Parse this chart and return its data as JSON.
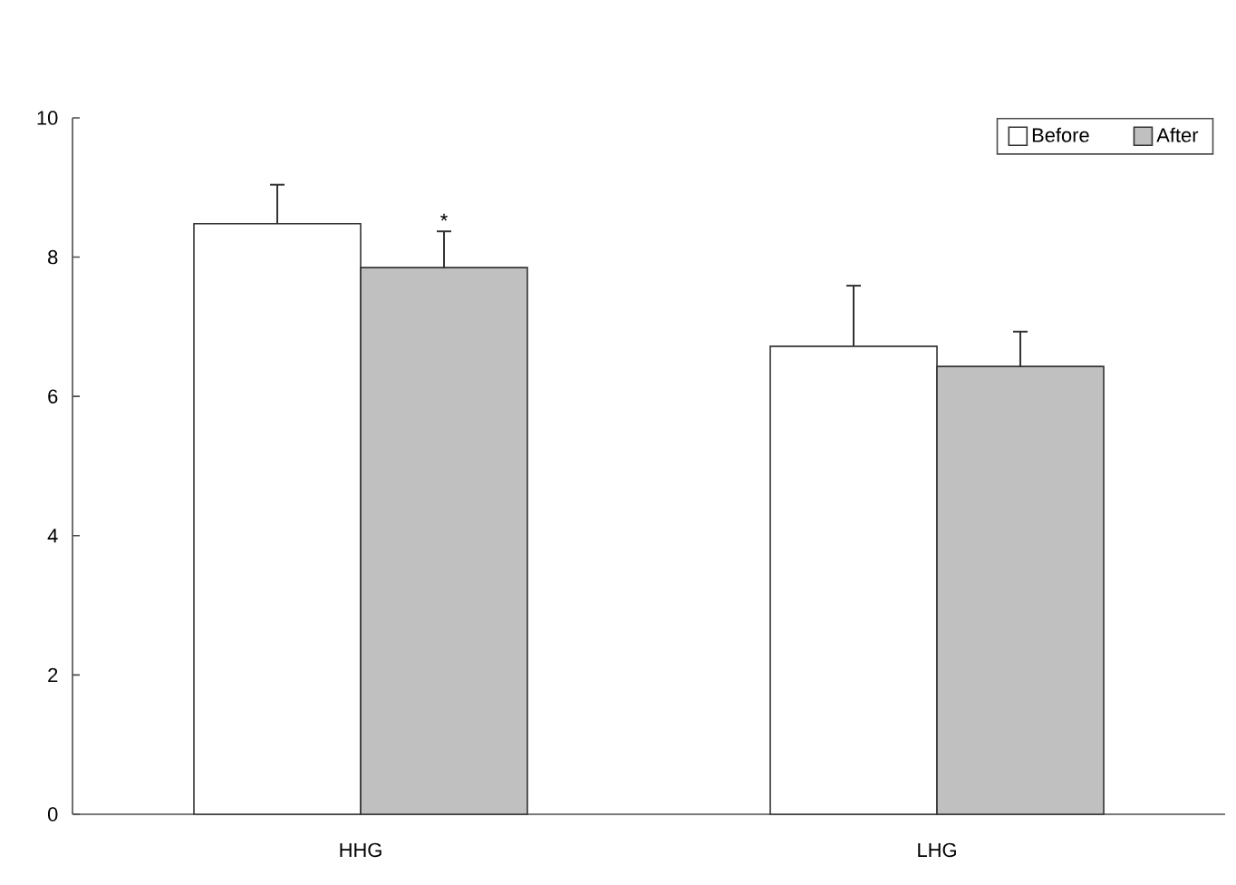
{
  "chart_data": {
    "type": "bar",
    "categories": [
      "HHG",
      "LHG"
    ],
    "series": [
      {
        "name": "Before",
        "color": "#ffffff",
        "values": [
          8.48,
          6.72
        ],
        "errors": [
          [
            8.48,
            9.04
          ],
          [
            6.72,
            7.59
          ]
        ]
      },
      {
        "name": "After",
        "color": "#c0c0c0",
        "values": [
          7.85,
          6.43
        ],
        "errors": [
          [
            7.85,
            8.37
          ],
          [
            6.43,
            6.93
          ]
        ]
      }
    ],
    "ylim": [
      0,
      10
    ],
    "yticks": [
      0,
      2,
      4,
      6,
      8,
      10
    ],
    "annotations": [
      "*"
    ],
    "legend": "top right",
    "grid": false
  }
}
